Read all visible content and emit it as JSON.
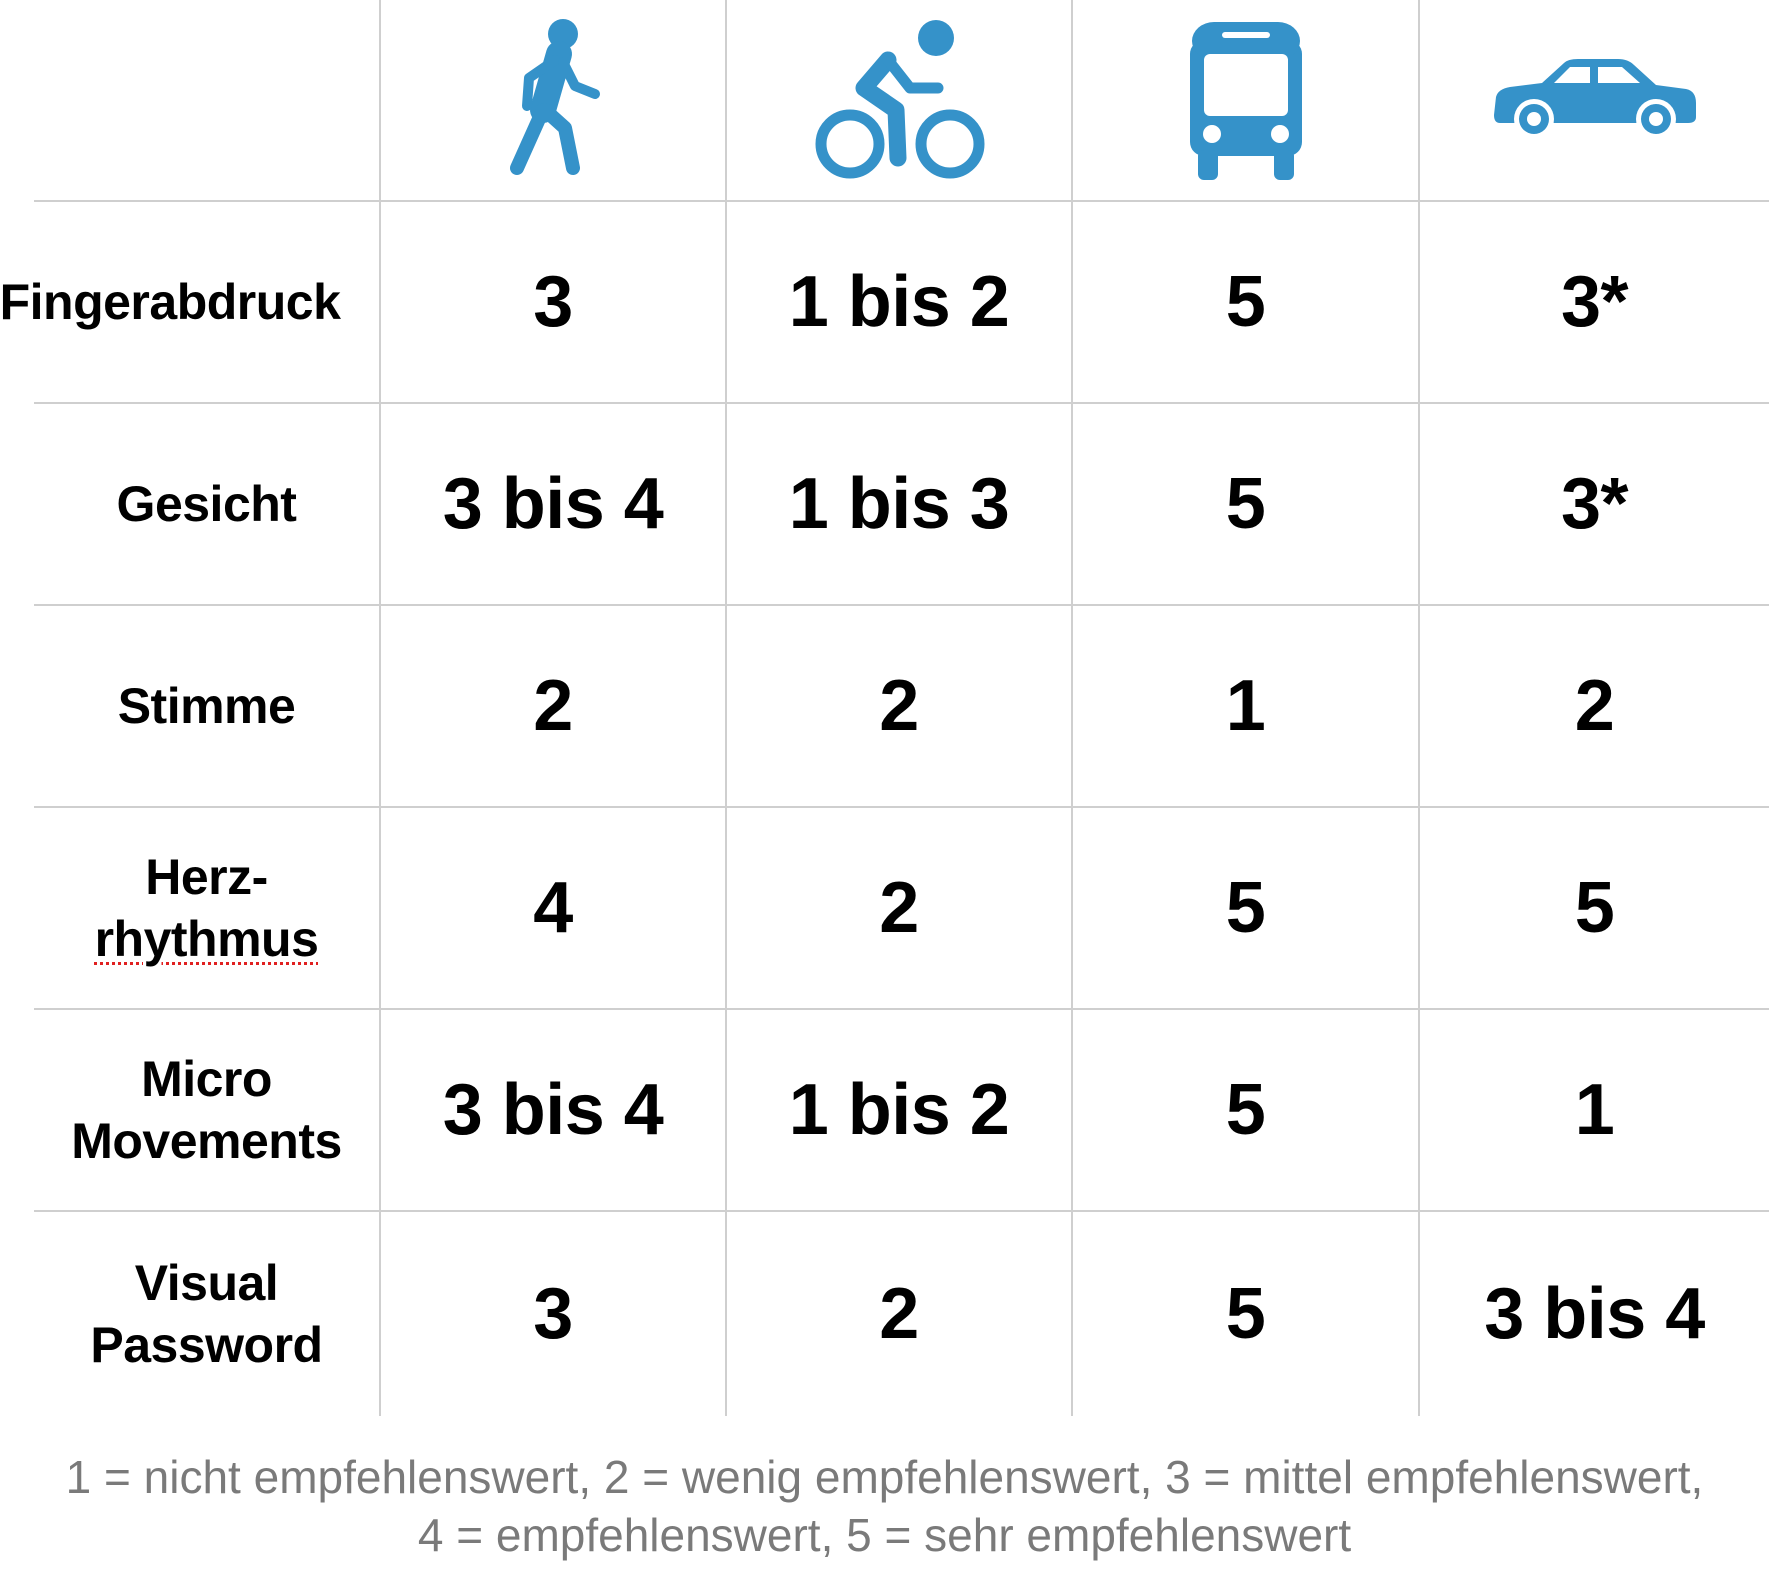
{
  "columns": [
    {
      "icon": "walking-person-icon"
    },
    {
      "icon": "cyclist-icon"
    },
    {
      "icon": "bus-icon"
    },
    {
      "icon": "car-icon"
    }
  ],
  "icon_color": "#3592c9",
  "rows": [
    {
      "label": "Fingerabdruck",
      "values": [
        "3",
        "1 bis 2",
        "5",
        "3*"
      ]
    },
    {
      "label": "Gesicht",
      "values": [
        "3 bis 4",
        "1 bis 3",
        "5",
        "3*"
      ]
    },
    {
      "label": "Stimme",
      "values": [
        "2",
        "2",
        "1",
        "2"
      ]
    },
    {
      "label_line1": "Herz-",
      "label_line2": "rhythmus",
      "values": [
        "4",
        "2",
        "5",
        "5"
      ]
    },
    {
      "label_line1": "Micro",
      "label_line2": "Movements",
      "values": [
        "3 bis 4",
        "1 bis 2",
        "5",
        "1"
      ]
    },
    {
      "label_line1": "Visual",
      "label_line2": "Password",
      "values": [
        "3",
        "2",
        "5",
        "3 bis 4"
      ]
    }
  ],
  "legend": {
    "line1": "1 = nicht empfehlenswert, 2 = wenig empfehlenswert, 3 = mittel empfehlenswert,",
    "line2": "4 = empfehlenswert, 5 = sehr empfehlenswert"
  }
}
